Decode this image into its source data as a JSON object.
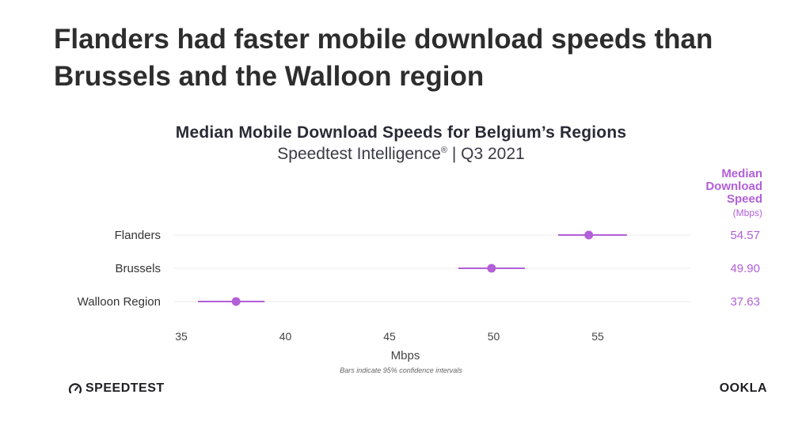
{
  "page": {
    "headline": "Flanders had faster mobile download speeds than Brussels and the Walloon region"
  },
  "chart_data": {
    "type": "scatter",
    "title": "Median Mobile Download Speeds for Belgium’s Regions",
    "subtitle": "Speedtest Intelligence",
    "subtitle_mark": "®",
    "subtitle_period": " | Q3 2021",
    "xlabel": "Mbps",
    "ylabel": "",
    "xlim": [
      35,
      60
    ],
    "xticks": [
      35,
      40,
      45,
      50,
      55
    ],
    "grid": true,
    "value_column_header": [
      "Median",
      "Download",
      "Speed"
    ],
    "value_column_unit": "(Mbps)",
    "categories": [
      "Flanders",
      "Brussels",
      "Walloon Region"
    ],
    "values": [
      54.57,
      49.9,
      37.63
    ],
    "value_labels": [
      "54.57",
      "49.90",
      "37.63"
    ],
    "ci_low": [
      53.1,
      48.3,
      35.8
    ],
    "ci_high": [
      56.4,
      51.5,
      39.0
    ],
    "footnote": "Bars indicate 95% confidence intervals",
    "color": "#b25fd8"
  },
  "branding": {
    "left": "SPEEDTEST",
    "left_icon": "speedometer-icon",
    "right": "OOKLA"
  }
}
